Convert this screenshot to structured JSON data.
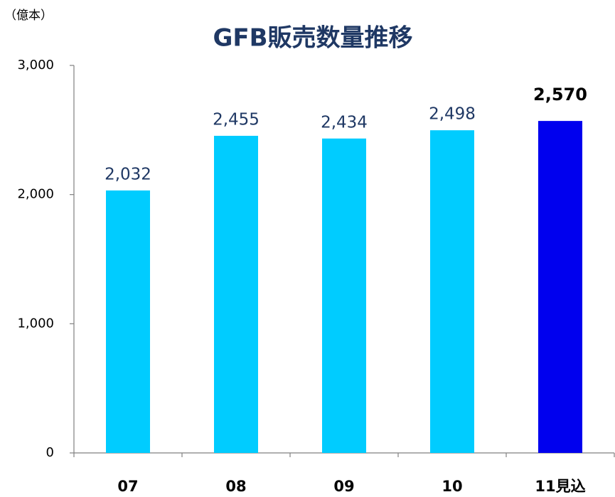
{
  "chart_data": {
    "type": "bar",
    "title": "GFB販売数量推移",
    "y_unit_label": "（億本）",
    "categories": [
      "07",
      "08",
      "09",
      "10",
      "11見込"
    ],
    "values": [
      2032,
      2455,
      2434,
      2498,
      2570
    ],
    "value_labels": [
      "2,032",
      "2,455",
      "2,434",
      "2,498",
      "2,570"
    ],
    "colors": [
      "#00ccff",
      "#00ccff",
      "#00ccff",
      "#00ccff",
      "#0000ee"
    ],
    "value_label_colors": [
      "#1f3864",
      "#1f3864",
      "#1f3864",
      "#1f3864",
      "#000000"
    ],
    "ylim": [
      0,
      3000
    ],
    "yticks": [
      0,
      {
        "value": 1000,
        "label": "1,000"
      },
      {
        "value": 2000,
        "label": "2,000"
      },
      {
        "value": 3000,
        "label": "3,000"
      }
    ],
    "grid": false
  }
}
